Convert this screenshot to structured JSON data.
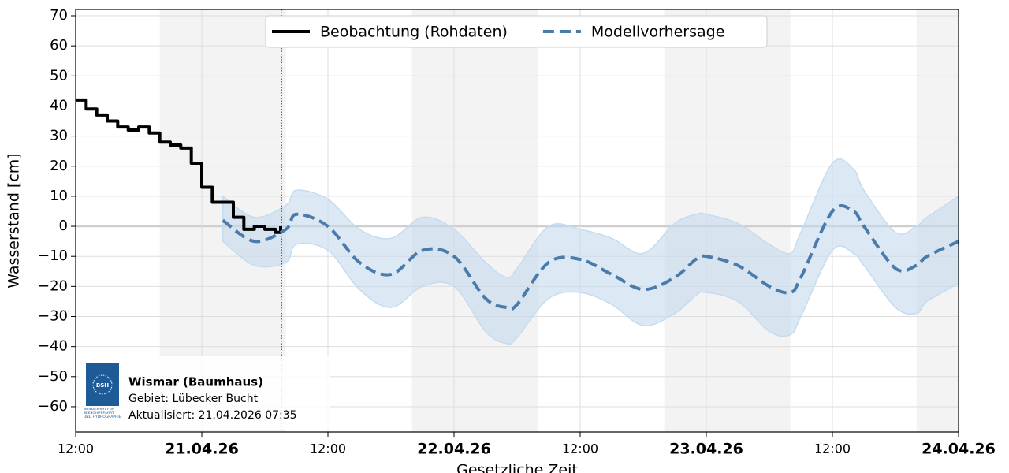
{
  "chart_data": {
    "type": "line",
    "xlabel": "Gesetzliche Zeit",
    "ylabel": "Wasserstand [cm]",
    "xlim": [
      0,
      84
    ],
    "ylim": [
      -68.4,
      72.1
    ],
    "xticks": [
      {
        "value": 0,
        "label": "12:00"
      },
      {
        "value": 12,
        "label": "21.04.26"
      },
      {
        "value": 24,
        "label": "12:00"
      },
      {
        "value": 36,
        "label": "22.04.26"
      },
      {
        "value": 48,
        "label": "12:00"
      },
      {
        "value": 60,
        "label": "23.04.26"
      },
      {
        "value": 72,
        "label": "12:00"
      },
      {
        "value": 84,
        "label": "24.04.26"
      }
    ],
    "yticks": [
      {
        "value": -60,
        "label": "−60"
      },
      {
        "value": -50,
        "label": "−50"
      },
      {
        "value": -40,
        "label": "−40"
      },
      {
        "value": -30,
        "label": "−30"
      },
      {
        "value": -20,
        "label": "−20"
      },
      {
        "value": -10,
        "label": "−10"
      },
      0,
      10,
      20,
      30,
      40,
      50,
      60,
      70
    ],
    "grid": true,
    "night_spans": [
      [
        8,
        20
      ],
      [
        32,
        44
      ],
      [
        56,
        68
      ],
      [
        80,
        84
      ]
    ],
    "now_x": 19.58,
    "series": [
      {
        "name": "Beobachtung (Rohdaten)",
        "color": "#000000",
        "style": "step",
        "x": [
          0,
          1,
          2,
          3,
          4,
          5,
          6,
          7,
          8,
          9,
          10,
          11,
          12,
          13,
          14,
          15,
          16,
          17,
          18,
          19,
          19.5
        ],
        "values": [
          42,
          39,
          37,
          35,
          33,
          32,
          33,
          31,
          28,
          27,
          26,
          21,
          13,
          8,
          8,
          3,
          -1,
          0,
          -1,
          -2,
          0
        ]
      },
      {
        "name": "Modellvorhersage",
        "color": "#4a7bab",
        "band_color": "#c5dbef",
        "style": "dashed",
        "x": [
          14,
          17,
          20,
          21,
          24,
          27,
          30,
          33,
          36,
          39,
          41,
          42,
          45,
          48,
          51,
          54,
          57,
          59,
          60,
          63,
          66,
          68,
          69,
          72,
          74,
          75,
          78,
          80,
          81,
          84
        ],
        "values": [
          2,
          -5,
          -1,
          4,
          0,
          -12,
          -16,
          -8,
          -10,
          -24,
          -27,
          -26,
          -12,
          -11,
          -16,
          -21,
          -17,
          -11,
          -10,
          -13,
          -20,
          -22,
          -17,
          5,
          5,
          0,
          -14,
          -13,
          -10,
          -5
        ],
        "upper": [
          10,
          3,
          7,
          12,
          9,
          -1,
          -4,
          3,
          -1,
          -12,
          -17,
          -14,
          0,
          -1,
          -4,
          -9,
          1,
          4,
          4,
          1,
          -6,
          -9,
          -2,
          21,
          19,
          12,
          -2,
          0,
          3,
          10
        ],
        "lower": [
          -5,
          -13,
          -12,
          -6,
          -8,
          -21,
          -27,
          -20,
          -20,
          -35,
          -39,
          -37,
          -24,
          -22,
          -26,
          -33,
          -29,
          -23,
          -22,
          -25,
          -35,
          -36,
          -30,
          -8,
          -9,
          -13,
          -27,
          -29,
          -25,
          -19
        ]
      }
    ],
    "info": {
      "station": "Wismar (Baumhaus)",
      "area": "Gebiet: Lübecker Bucht",
      "updated": "Aktualisiert: 21.04.2026 07:35",
      "logo": "BSH",
      "logo_text": "BUNDESAMT FÜR SEESCHIFFFAHRT UND HYDROGRAPHIE"
    }
  }
}
